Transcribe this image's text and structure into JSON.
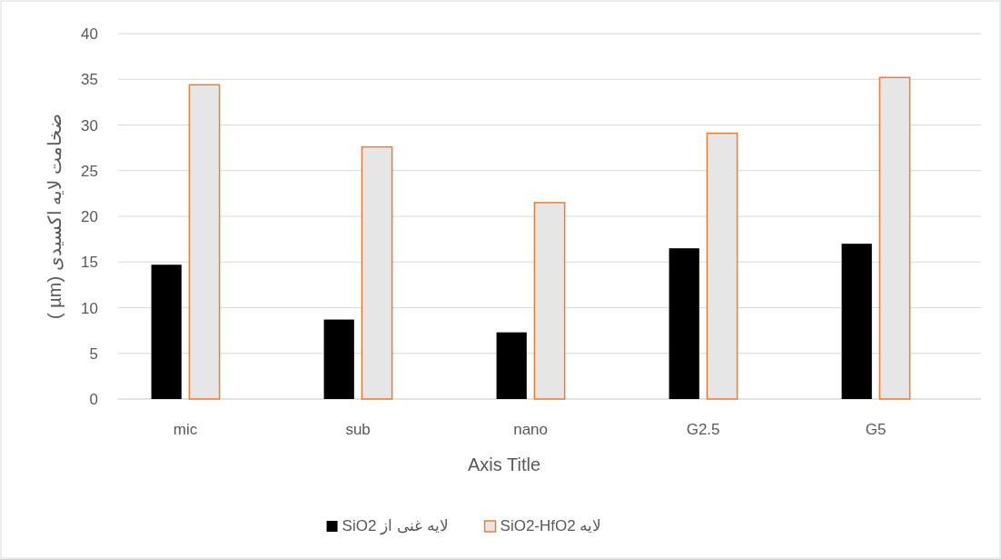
{
  "chart_data": {
    "type": "bar",
    "xlabel": "Axis Title",
    "ylabel": "ضخامت لایه اکسیدی (µm )",
    "categories": [
      "mic",
      "sub",
      "nano",
      "G2.5",
      "G5"
    ],
    "series": [
      {
        "name": "لایه غنی از SiO2",
        "color": "#000000",
        "values": [
          14.7,
          8.7,
          7.3,
          16.5,
          17.0
        ]
      },
      {
        "name": "لایه SiO2-HfO2",
        "color": "#e7e6e6",
        "values": [
          34.4,
          27.6,
          21.5,
          29.1,
          35.2
        ]
      }
    ],
    "ylim": [
      0,
      40
    ],
    "yticks": [
      0,
      5,
      10,
      15,
      20,
      25,
      30,
      35,
      40
    ],
    "grid": "y",
    "legend": "bottom"
  }
}
